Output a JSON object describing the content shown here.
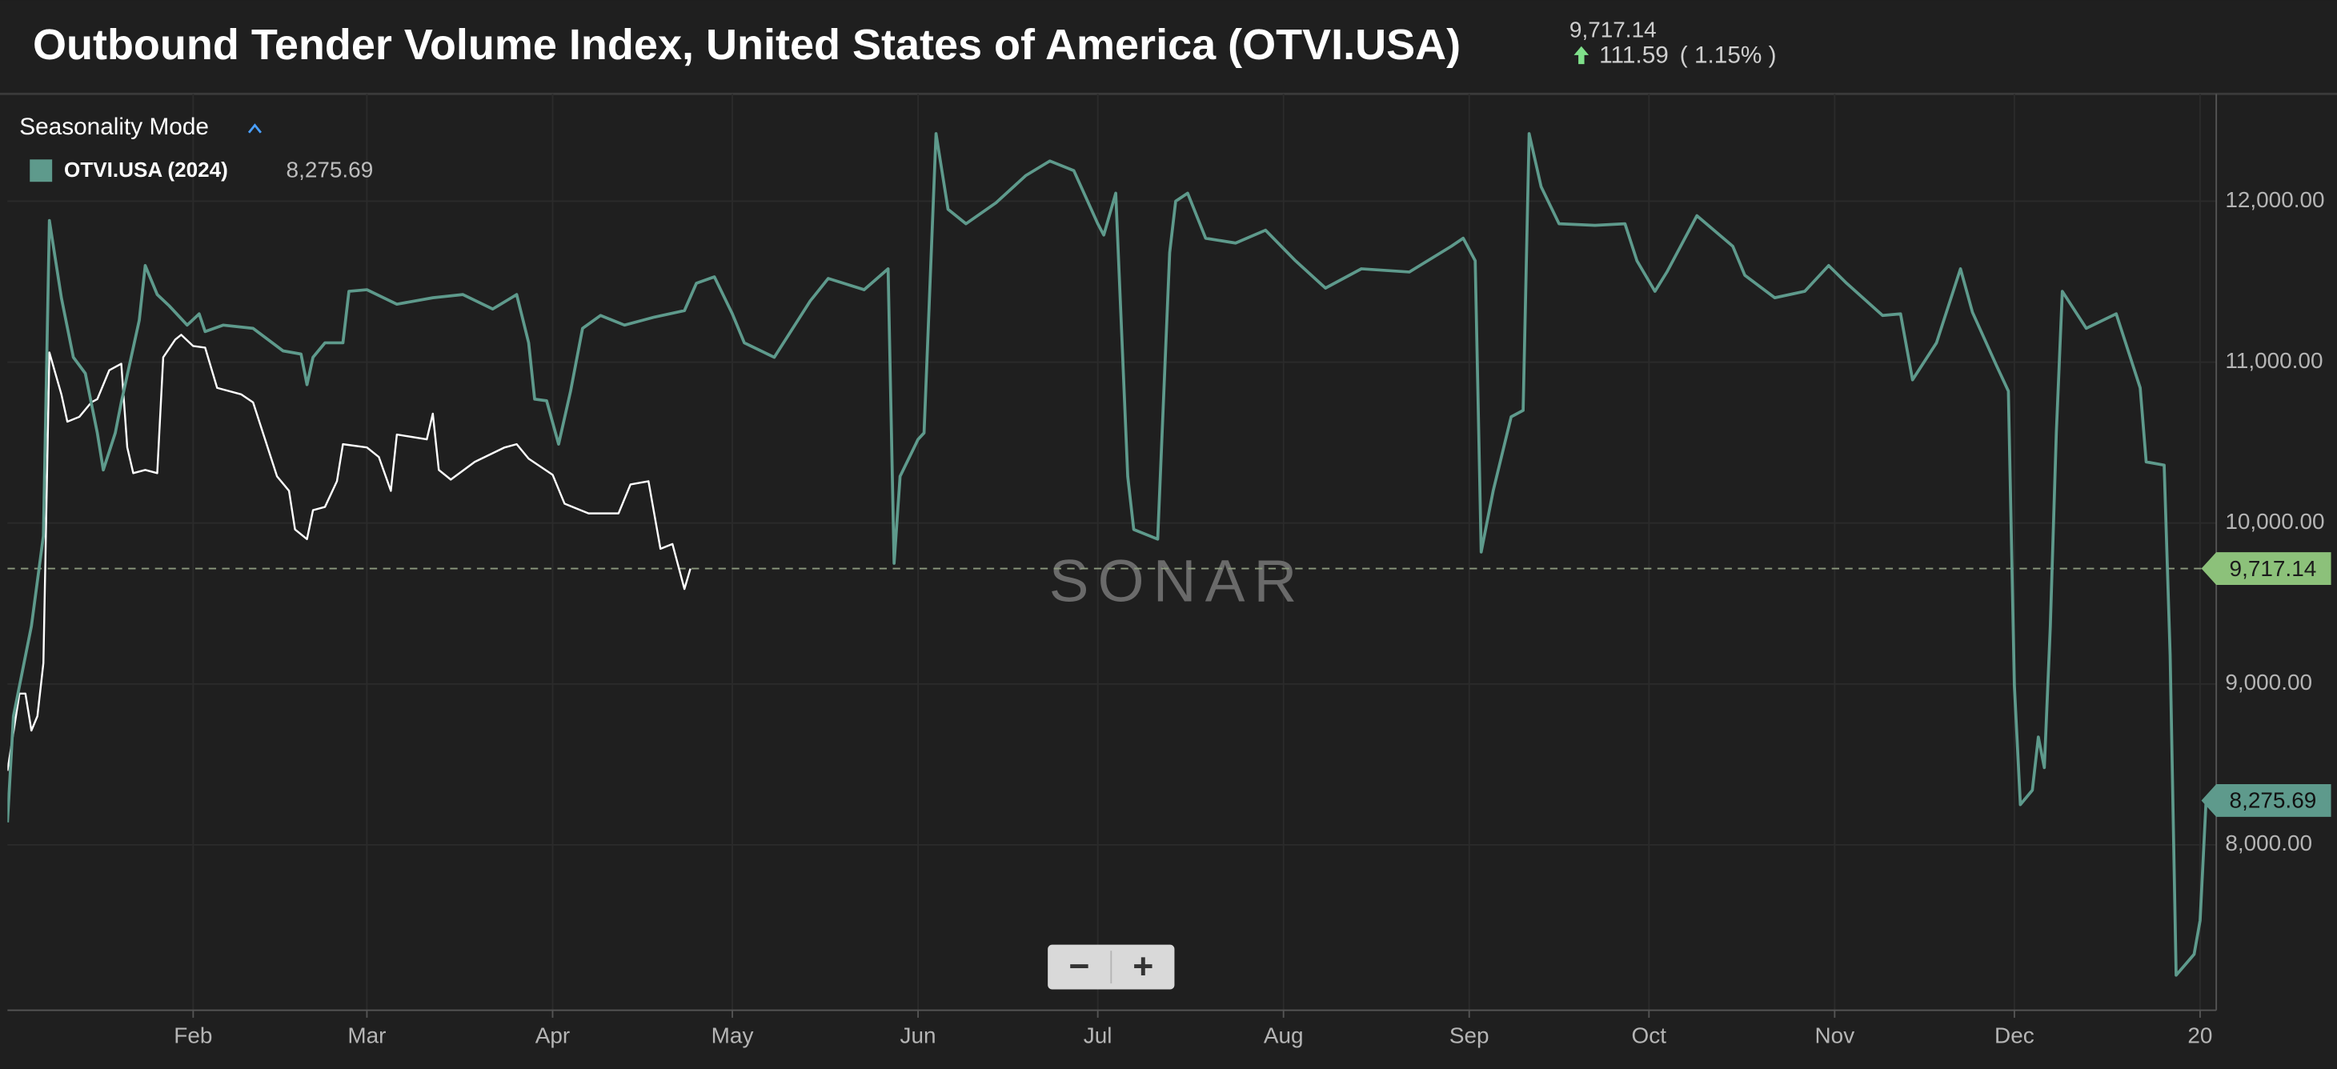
{
  "chart_data": {
    "type": "line",
    "title": "Outbound Tender Volume Index, United States of America (OTVI.USA)",
    "reference_line": {
      "value": 9717.14,
      "label": "9,717.14"
    },
    "change": 111.59,
    "change_percent": {
      "value": 1.15,
      "label": "( 1.15% )"
    },
    "mode_label": "Seasonality Mode",
    "watermark": "SONAR",
    "zoom_controls": [
      "−",
      "+"
    ],
    "xlim": [
      0,
      368.7
    ],
    "ylim": [
      6972,
      12667
    ],
    "xticks": [
      {
        "value": 31,
        "label": "Feb"
      },
      {
        "value": 60,
        "label": "Mar"
      },
      {
        "value": 91,
        "label": "Apr"
      },
      {
        "value": 121,
        "label": "May"
      },
      {
        "value": 152,
        "label": "Jun"
      },
      {
        "value": 182,
        "label": "Jul"
      },
      {
        "value": 213,
        "label": "Aug"
      },
      {
        "value": 244,
        "label": "Sep"
      },
      {
        "value": 274,
        "label": "Oct"
      },
      {
        "value": 305,
        "label": "Nov"
      },
      {
        "value": 335,
        "label": "Dec"
      },
      {
        "value": 366,
        "label": "20"
      }
    ],
    "yticks": [
      {
        "value": 8000,
        "label": "8,000.00"
      },
      {
        "value": 9000,
        "label": "9,000.00"
      },
      {
        "value": 10000,
        "label": "10,000.00"
      },
      {
        "value": 11000,
        "label": "11,000.00"
      },
      {
        "value": 12000,
        "label": "12,000.00"
      }
    ],
    "grid": true,
    "series": [
      {
        "name": "OTVI.USA (2024)",
        "color": "#5e9a8c",
        "last_value": {
          "value": 8275.69,
          "label": "8,275.69"
        },
        "x": [
          0,
          1,
          4,
          6,
          7,
          9,
          11,
          13,
          15,
          16,
          18,
          19,
          22,
          23,
          25,
          27,
          30,
          32,
          33,
          36,
          41,
          46,
          49,
          50,
          51,
          53,
          56,
          57,
          60,
          65,
          71,
          76,
          81,
          85,
          87,
          88,
          90,
          92,
          94,
          96,
          99,
          103,
          108,
          113,
          115,
          118,
          121,
          123,
          128,
          134,
          137,
          143,
          147,
          148,
          149,
          152,
          153,
          155,
          157,
          160,
          165,
          170,
          174,
          178,
          182,
          183,
          185,
          187,
          188,
          192,
          194,
          195,
          197,
          200,
          205,
          210,
          215,
          220,
          226,
          234,
          241,
          243,
          245,
          246,
          248,
          251,
          253,
          254,
          256,
          259,
          265,
          270,
          272,
          275,
          277,
          282,
          288,
          290,
          295,
          300,
          304,
          307,
          313,
          316,
          318,
          322,
          326,
          328,
          332,
          334,
          335,
          336,
          338,
          339,
          340,
          341,
          342,
          343,
          347,
          352,
          356,
          357,
          360,
          361,
          362,
          365,
          366,
          367
        ],
        "values": [
          8140,
          8800,
          9360,
          9920,
          11880,
          11400,
          11030,
          10930,
          10560,
          10330,
          10560,
          10750,
          11260,
          11600,
          11420,
          11350,
          11230,
          11300,
          11190,
          11230,
          11210,
          11070,
          11050,
          10860,
          11030,
          11120,
          11120,
          11440,
          11450,
          11360,
          11400,
          11420,
          11330,
          11420,
          11120,
          10770,
          10760,
          10490,
          10820,
          11210,
          11290,
          11230,
          11280,
          11320,
          11490,
          11530,
          11300,
          11120,
          11030,
          11380,
          11520,
          11450,
          11580,
          9750,
          10290,
          10520,
          10560,
          12420,
          11950,
          11860,
          11990,
          12160,
          12250,
          12190,
          11860,
          11790,
          12050,
          10290,
          9960,
          9900,
          11680,
          12000,
          12050,
          11770,
          11740,
          11820,
          11630,
          11460,
          11580,
          11560,
          11720,
          11770,
          11630,
          9820,
          10200,
          10660,
          10700,
          12420,
          12090,
          11860,
          11850,
          11860,
          11630,
          11440,
          11560,
          11910,
          11720,
          11540,
          11400,
          11440,
          11600,
          11490,
          11290,
          11300,
          10890,
          11120,
          11580,
          11310,
          10980,
          10820,
          8990,
          8250,
          8340,
          8670,
          8480,
          9360,
          10560,
          11440,
          11210,
          11300,
          10840,
          10380,
          10360,
          9180,
          7190,
          7320,
          7530,
          8275.69
        ]
      },
      {
        "color": "#ffffff",
        "x": [
          0,
          2,
          3,
          4,
          5,
          6,
          7,
          9,
          10,
          12,
          14,
          15,
          17,
          19,
          20,
          21,
          23,
          25,
          26,
          28,
          29,
          31,
          33,
          35,
          39,
          41,
          43,
          45,
          47,
          48,
          50,
          51,
          53,
          55,
          56,
          60,
          62,
          64,
          65,
          70,
          71,
          72,
          74,
          78,
          83,
          85,
          87,
          91,
          93,
          97,
          102,
          104,
          107,
          109,
          111,
          113,
          114
        ],
        "values": [
          8460,
          8940,
          8940,
          8710,
          8800,
          9130,
          11060,
          10800,
          10630,
          10660,
          10750,
          10770,
          10950,
          10990,
          10470,
          10310,
          10330,
          10310,
          11030,
          11140,
          11170,
          11100,
          11090,
          10840,
          10800,
          10750,
          10520,
          10290,
          10200,
          9960,
          9900,
          10080,
          10100,
          10260,
          10490,
          10470,
          10410,
          10200,
          10550,
          10520,
          10680,
          10330,
          10270,
          10380,
          10470,
          10490,
          10400,
          10300,
          10120,
          10060,
          10060,
          10240,
          10260,
          9840,
          9870,
          9590,
          9717.14
        ]
      }
    ]
  }
}
